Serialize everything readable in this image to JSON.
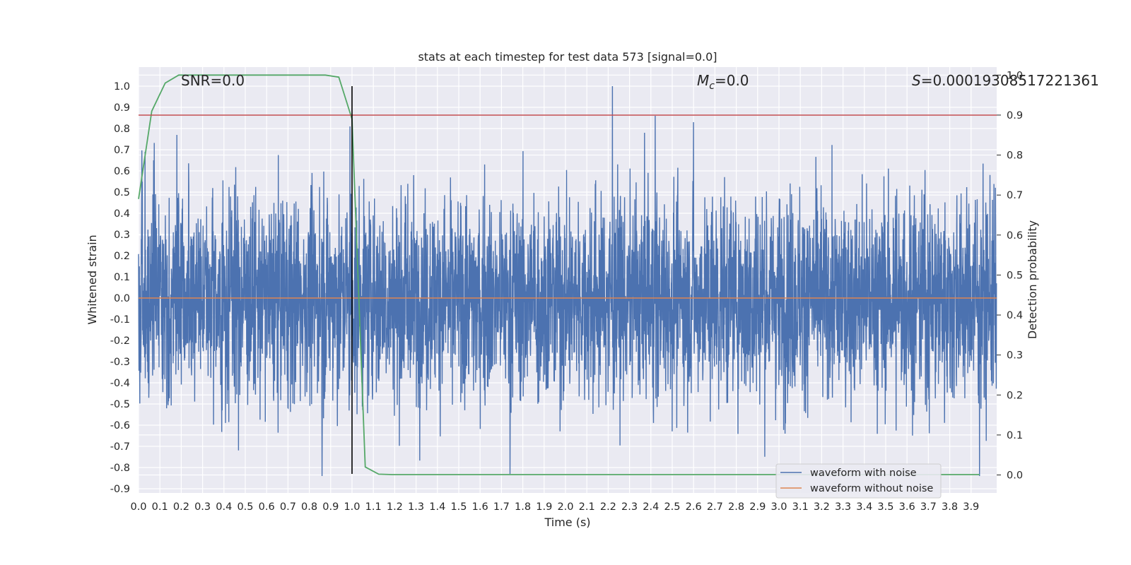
{
  "chart_data": {
    "type": "line",
    "title": "stats at each timestep for test data 573 [signal=0.0]",
    "xlabel": "Time (s)",
    "ylabel": "Whitened strain",
    "y2label": "Detection probability",
    "xlim": [
      0.0,
      4.02
    ],
    "ylim": [
      -0.92,
      1.09
    ],
    "y2lim": [
      -0.045,
      1.02
    ],
    "x_ticks": [
      0.0,
      0.1,
      0.2,
      0.3,
      0.4,
      0.5,
      0.6,
      0.7,
      0.8,
      0.9,
      1.0,
      1.1,
      1.2,
      1.3,
      1.4,
      1.5,
      1.6,
      1.7,
      1.8,
      1.9,
      2.0,
      2.1,
      2.2,
      2.3,
      2.4,
      2.5,
      2.6,
      2.7,
      2.8,
      2.9,
      3.0,
      3.1,
      3.2,
      3.3,
      3.4,
      3.5,
      3.6,
      3.7,
      3.8,
      3.9
    ],
    "y_ticks": [
      -0.9,
      -0.8,
      -0.7,
      -0.6,
      -0.5,
      -0.4,
      -0.3,
      -0.2,
      -0.1,
      0.0,
      0.1,
      0.2,
      0.3,
      0.4,
      0.5,
      0.6,
      0.7,
      0.8,
      0.9,
      1.0
    ],
    "y2_ticks": [
      0.0,
      0.1,
      0.2,
      0.3,
      0.4,
      0.5,
      0.6,
      0.7,
      0.8,
      0.9,
      1.0
    ],
    "grid": true,
    "legend_position": "bottom-right",
    "annotations": {
      "snr": "SNR=0.0",
      "mc_symbol": "M",
      "mc_sub": "c",
      "mc_value": "=0.0",
      "s_symbol": "S",
      "s_value": "=0.00019308517221361"
    },
    "series": [
      {
        "name": "waveform with noise",
        "color": "#4c72b0",
        "axis": "left",
        "samples": 4096,
        "approx_range": [
          -0.84,
          1.0
        ],
        "notable_peaks": [
          {
            "x": 0.03,
            "y": 0.69
          },
          {
            "x": 0.18,
            "y": 0.77
          },
          {
            "x": 0.99,
            "y": 0.81
          },
          {
            "x": 2.22,
            "y": 1.0
          },
          {
            "x": 2.42,
            "y": 0.86
          },
          {
            "x": 2.6,
            "y": 0.83
          },
          {
            "x": 0.86,
            "y": -0.84
          },
          {
            "x": 1.74,
            "y": -0.83
          },
          {
            "x": 3.94,
            "y": -0.84
          }
        ]
      },
      {
        "name": "waveform without noise",
        "color": "#dd8452",
        "axis": "left",
        "x": [
          0.0,
          4.02
        ],
        "y": [
          0.0,
          0.0
        ]
      },
      {
        "color": "#55a868",
        "axis": "right",
        "x": [
          0.0,
          0.062,
          0.125,
          0.188,
          0.25,
          0.5,
          0.75,
          0.875,
          0.938,
          1.0,
          1.062,
          1.125,
          1.188,
          1.5,
          2.0,
          2.5,
          3.0,
          3.5,
          3.94
        ],
        "y": [
          0.69,
          0.91,
          0.98,
          1.0,
          1.0,
          1.0,
          1.0,
          1.0,
          0.995,
          0.89,
          0.02,
          0.002,
          0.001,
          0.001,
          0.001,
          0.001,
          0.001,
          0.001,
          0.001
        ]
      }
    ],
    "reference_lines": [
      {
        "orientation": "horizontal",
        "axis": "right",
        "value": 0.9,
        "color": "#c44e52"
      },
      {
        "orientation": "vertical",
        "value": 1.0,
        "ymin": -0.83,
        "ymax": 1.0,
        "color": "#000000"
      }
    ]
  }
}
